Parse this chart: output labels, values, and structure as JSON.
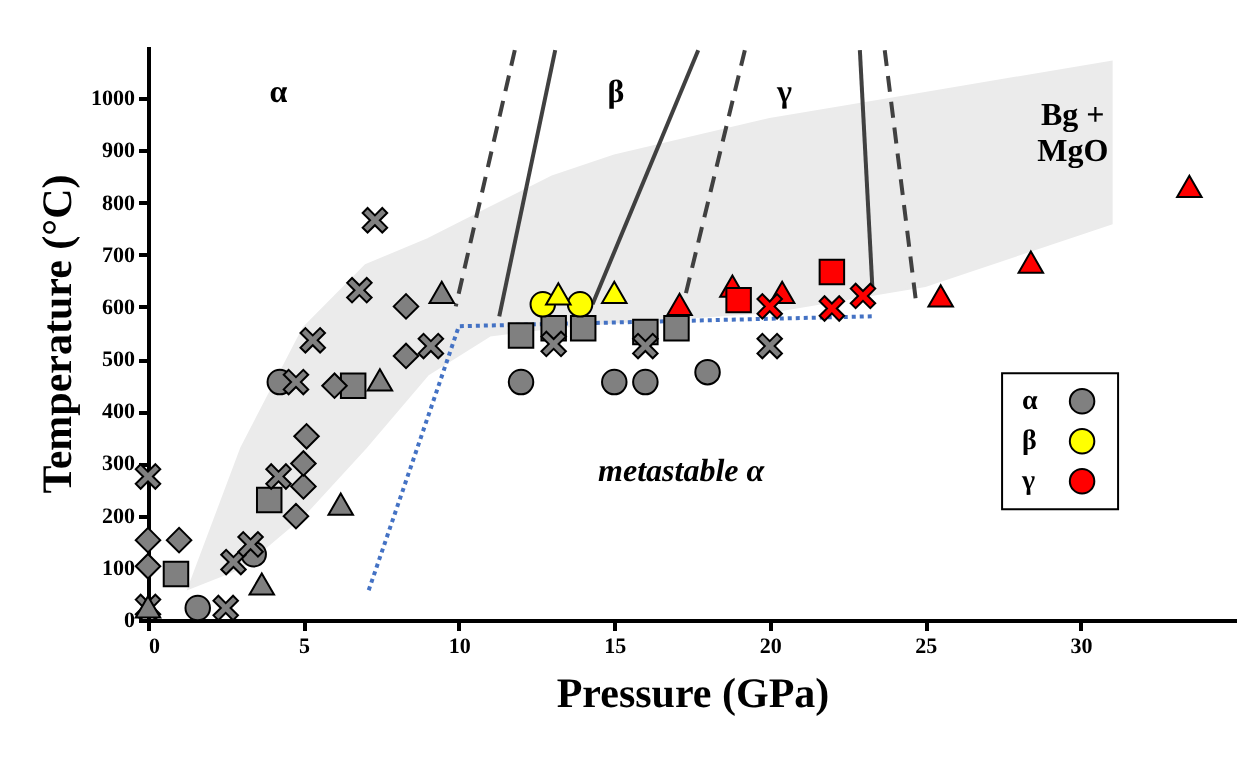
{
  "chart_data": {
    "type": "scatter",
    "xlabel": "Pressure (GPa)",
    "ylabel": "Temperature (°C)",
    "xlim": [
      0,
      35
    ],
    "ylim": [
      0,
      1100
    ],
    "xticks": [
      0,
      5,
      10,
      15,
      20,
      25,
      30
    ],
    "yticks": [
      0,
      100,
      200,
      300,
      400,
      500,
      600,
      700,
      800,
      900,
      1000
    ],
    "legend": "bottom right",
    "series": [
      {
        "type": "line",
        "color": "#ebebeb",
        "x": [
          1.3,
          3,
          5,
          7,
          9,
          11,
          13,
          15,
          20,
          25,
          31
        ],
        "values": [
          null,
          null,
          null,
          null,
          null,
          null,
          null,
          null,
          null,
          null,
          null
        ],
        "upper": [
          60,
          330,
          560,
          680,
          730,
          790,
          850,
          890,
          960,
          1010,
          1070
        ],
        "lower": [
          60,
          100,
          200,
          330,
          470,
          545,
          560,
          570,
          590,
          640,
          760
        ]
      },
      {
        "type": "line",
        "color": "#404040",
        "line_style": "dashed",
        "x": [
          11.8,
          9.9
        ],
        "values": [
          1092,
          601
        ]
      },
      {
        "type": "line",
        "color": "#404040",
        "line_style": "solid",
        "x": [
          13.1,
          11.3
        ],
        "values": [
          1092,
          582
        ]
      },
      {
        "type": "line",
        "color": "#404040",
        "line_style": "solid",
        "x": [
          17.7,
          14.3
        ],
        "values": [
          1092,
          605
        ]
      },
      {
        "type": "line",
        "color": "#404040",
        "line_style": "dashed",
        "x": [
          19.2,
          17.3
        ],
        "values": [
          1092,
          625
        ]
      },
      {
        "type": "line",
        "color": "#404040",
        "line_style": "solid",
        "x": [
          22.9,
          23.3
        ],
        "values": [
          1092,
          640
        ]
      },
      {
        "type": "line",
        "color": "#404040",
        "line_style": "dashed",
        "x": [
          23.7,
          24.7
        ],
        "values": [
          1092,
          613
        ]
      },
      {
        "type": "line",
        "color": "#4472c4",
        "line_style": "dotted",
        "x": [
          7.1,
          10.0,
          23.3
        ],
        "values": [
          57,
          563,
          582
        ]
      },
      {
        "name": "α",
        "color": "#808080",
        "marker": "circle",
        "x": [
          1.6,
          3.4,
          4.24,
          12.0,
          15.0,
          16.0,
          18.0
        ],
        "values": [
          23,
          126,
          456,
          456,
          456,
          456,
          475
        ]
      },
      {
        "color": "#808080",
        "marker": "square",
        "x": [
          0.9,
          3.9,
          6.6,
          12.0,
          13.05,
          14.0,
          16.0,
          17.0
        ],
        "values": [
          88,
          230,
          449,
          545,
          559,
          559,
          552,
          559
        ]
      },
      {
        "color": "#808080",
        "marker": "diamond",
        "x": [
          0,
          0,
          1.0,
          4.76,
          5.0,
          5.0,
          5.1,
          6.0,
          8.3,
          8.3
        ],
        "values": [
          103,
          153,
          153,
          199,
          256,
          300,
          352,
          449,
          506,
          601
        ]
      },
      {
        "color": "#808080",
        "marker": "cross",
        "x": [
          0,
          0,
          2.5,
          2.75,
          3.3,
          4.2,
          4.76,
          5.3,
          6.8,
          7.3,
          9.1,
          13.05,
          16.0,
          20.0
        ],
        "values": [
          25,
          275,
          23,
          111,
          145,
          275,
          456,
          536,
          632,
          766,
          525,
          529,
          525,
          525
        ]
      },
      {
        "color": "#808080",
        "marker": "triangle",
        "x": [
          0,
          3.66,
          6.2,
          7.46,
          9.45
        ],
        "values": [
          25,
          69,
          222,
          460,
          628
        ]
      },
      {
        "name": "β",
        "color": "#ffff00",
        "marker": "circle",
        "x": [
          12.7,
          13.9
        ],
        "values": [
          605,
          605
        ]
      },
      {
        "color": "#ffff00",
        "marker": "triangle",
        "x": [
          13.2,
          15.0
        ],
        "values": [
          625,
          628
        ]
      },
      {
        "name": "γ",
        "color": "#ff0000",
        "marker": "triangle",
        "x": [
          17.1,
          18.8,
          20.4,
          25.5,
          28.4,
          33.5
        ],
        "values": [
          605,
          640,
          628,
          621,
          686,
          831
        ]
      },
      {
        "color": "#ff0000",
        "marker": "square",
        "x": [
          19.0,
          22.0
        ],
        "values": [
          613,
          667
        ]
      },
      {
        "color": "#ff0000",
        "marker": "cross",
        "x": [
          20.0,
          22.0,
          23.0
        ],
        "values": [
          601,
          597,
          621
        ]
      }
    ],
    "annotations": [
      "α",
      "β",
      "γ",
      "Bg +\nMgO",
      "metastable  α"
    ]
  }
}
